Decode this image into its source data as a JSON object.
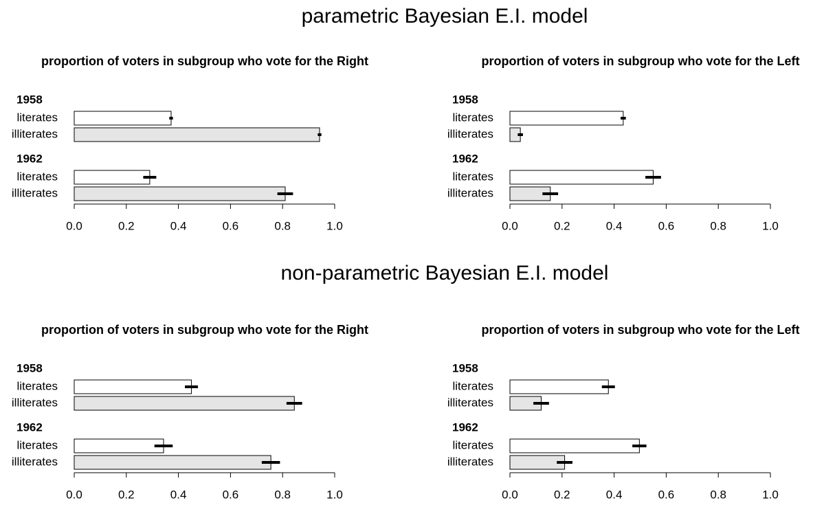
{
  "headings": [
    "parametric Bayesian E.I. model",
    "non-parametric Bayesian E.I. model"
  ],
  "chart_data": [
    {
      "type": "bar",
      "orientation": "horizontal",
      "title": "proportion of voters in subgroup who vote for the Right",
      "categories": [
        "literates",
        "illiterates"
      ],
      "colors": [
        "#ffffff",
        "#e5e5e5"
      ],
      "groups": [
        {
          "name": "1958",
          "values": [
            0.372,
            0.942
          ],
          "errors": [
            0.007,
            0.007
          ]
        },
        {
          "name": "1962",
          "values": [
            0.29,
            0.81
          ],
          "errors": [
            0.025,
            0.03
          ]
        }
      ],
      "xlim": [
        0,
        1
      ],
      "xticks": [
        {
          "value": 0,
          "label": "0.0"
        },
        0.2,
        0.4,
        0.6,
        0.8,
        {
          "value": 1,
          "label": "1.0"
        }
      ]
    },
    {
      "type": "bar",
      "orientation": "horizontal",
      "title": "proportion of voters in subgroup who vote for the Left",
      "categories": [
        "literates",
        "illiterates"
      ],
      "colors": [
        "#ffffff",
        "#e5e5e5"
      ],
      "groups": [
        {
          "name": "1958",
          "values": [
            0.435,
            0.04
          ],
          "errors": [
            0.01,
            0.01
          ]
        },
        {
          "name": "1962",
          "values": [
            0.55,
            0.155
          ],
          "errors": [
            0.03,
            0.03
          ]
        }
      ],
      "xlim": [
        0,
        1
      ],
      "xticks": [
        {
          "value": 0,
          "label": "0.0"
        },
        0.2,
        0.4,
        0.6,
        0.8,
        {
          "value": 1,
          "label": "1.0"
        }
      ]
    },
    {
      "type": "bar",
      "orientation": "horizontal",
      "title": "proportion of voters in subgroup who vote for the Right",
      "categories": [
        "literates",
        "illiterates"
      ],
      "colors": [
        "#ffffff",
        "#e5e5e5"
      ],
      "groups": [
        {
          "name": "1958",
          "values": [
            0.45,
            0.845
          ],
          "errors": [
            0.025,
            0.03
          ]
        },
        {
          "name": "1962",
          "values": [
            0.343,
            0.755
          ],
          "errors": [
            0.035,
            0.035
          ]
        }
      ],
      "xlim": [
        0,
        1
      ],
      "xticks": [
        {
          "value": 0,
          "label": "0.0"
        },
        0.2,
        0.4,
        0.6,
        0.8,
        {
          "value": 1,
          "label": "1.0"
        }
      ]
    },
    {
      "type": "bar",
      "orientation": "horizontal",
      "title": "proportion of voters in subgroup who vote for the Left",
      "categories": [
        "literates",
        "illiterates"
      ],
      "colors": [
        "#ffffff",
        "#e5e5e5"
      ],
      "groups": [
        {
          "name": "1958",
          "values": [
            0.378,
            0.12
          ],
          "errors": [
            0.025,
            0.03
          ]
        },
        {
          "name": "1962",
          "values": [
            0.497,
            0.21
          ],
          "errors": [
            0.027,
            0.03
          ]
        }
      ],
      "xlim": [
        0,
        1
      ],
      "xticks": [
        {
          "value": 0,
          "label": "0.0"
        },
        0.2,
        0.4,
        0.6,
        0.8,
        {
          "value": 1,
          "label": "1.0"
        }
      ]
    }
  ]
}
